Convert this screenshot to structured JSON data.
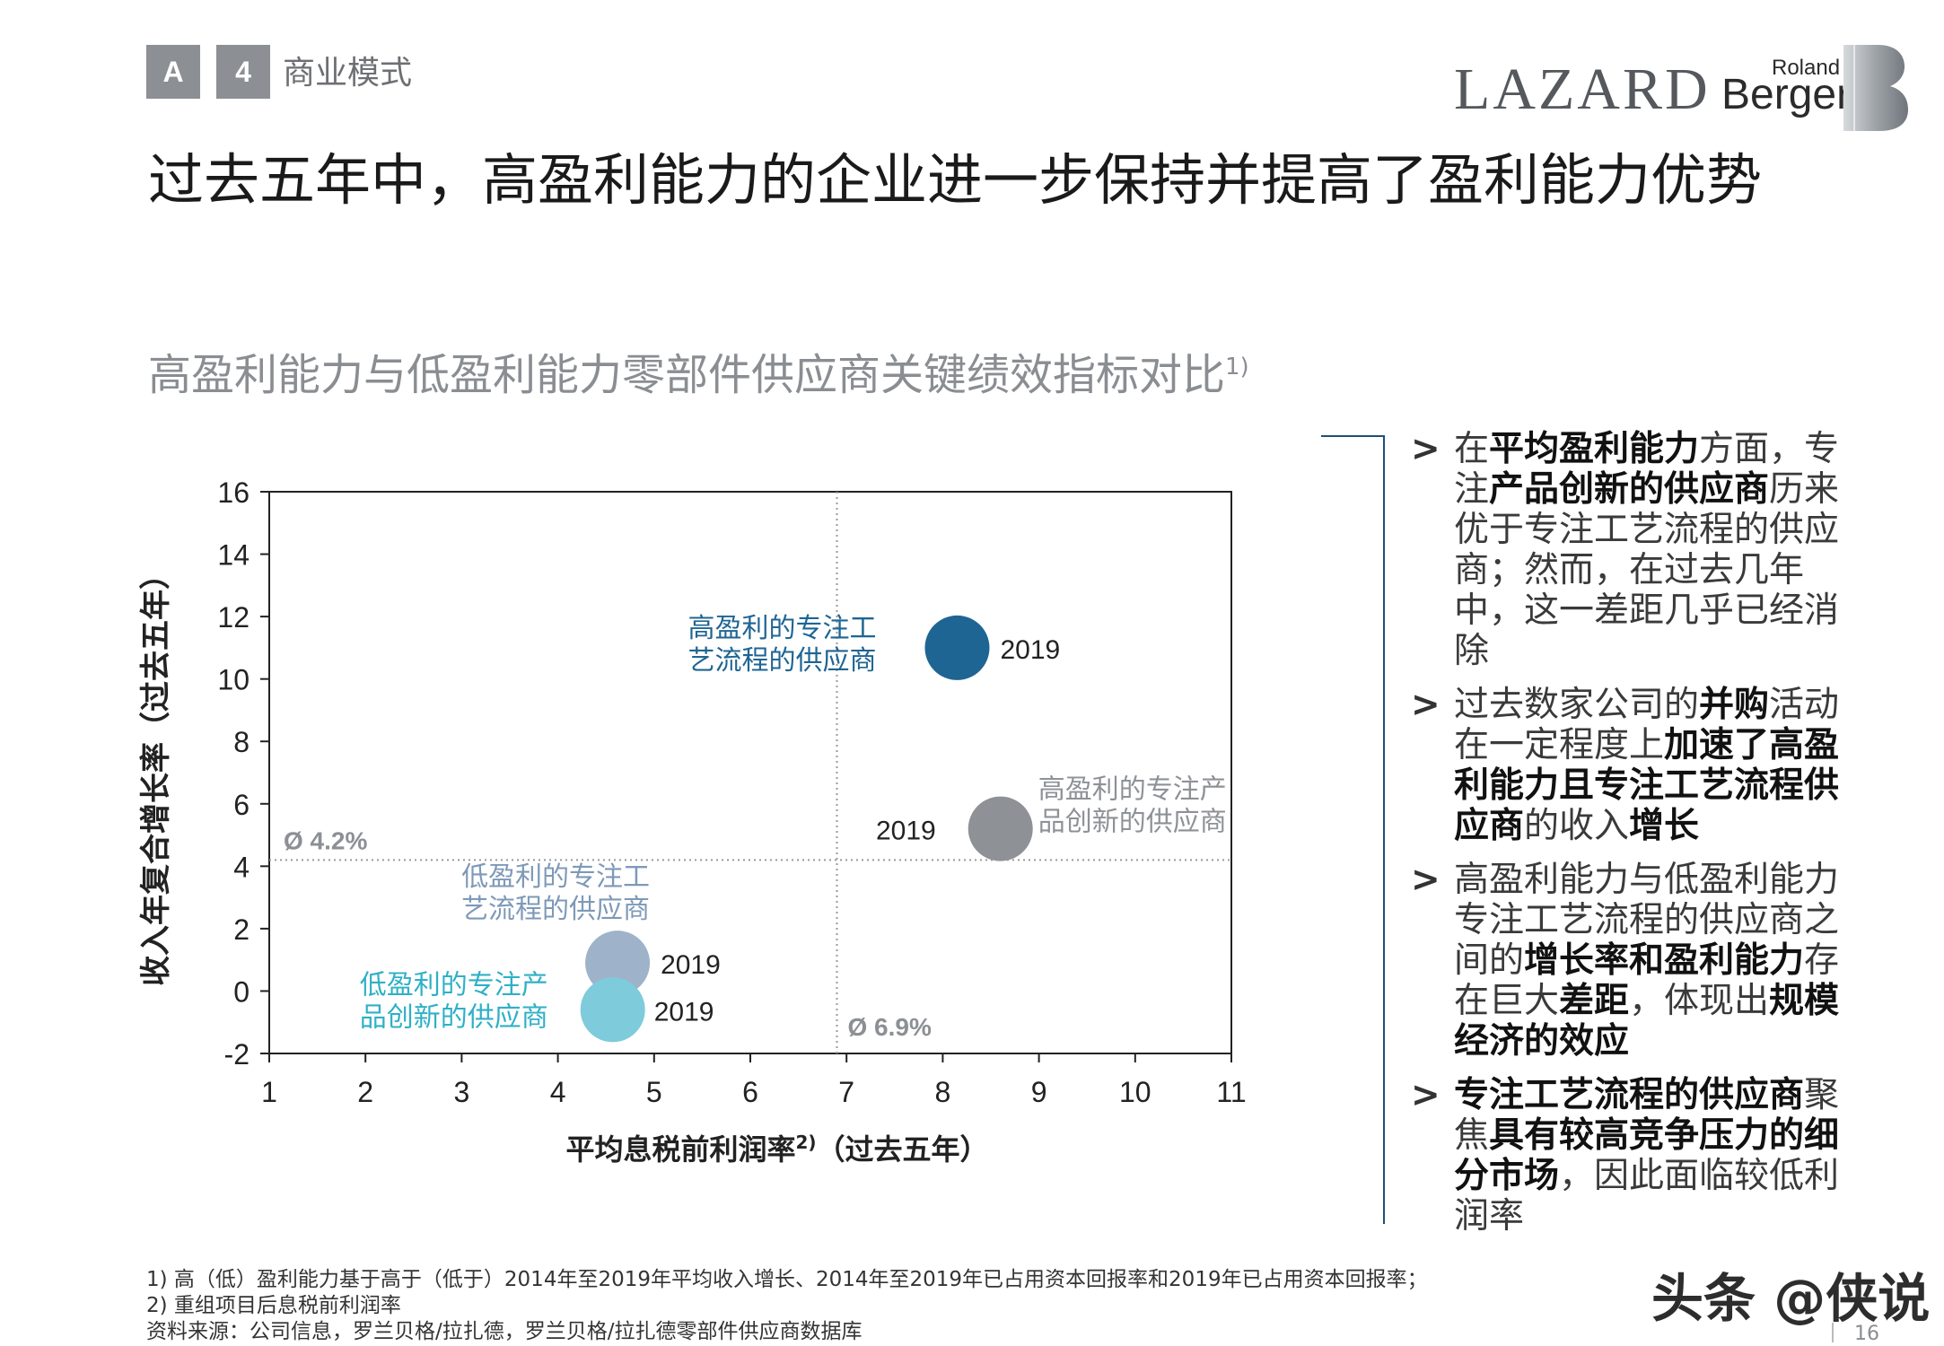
{
  "header": {
    "crumb_letter": "A",
    "crumb_number": "4",
    "crumb_text": "商业模式",
    "logo_lazard": "LAZARD",
    "logo_rb_top": "Roland",
    "logo_rb_main": "Berger"
  },
  "title": "过去五年中，高盈利能力的企业进一步保持并提高了盈利能力优势",
  "subtitle": {
    "text": "高盈利能力与低盈利能力零部件供应商关键绩效指标对比",
    "sup": "1)"
  },
  "chart_data": {
    "type": "scatter",
    "title": "高盈利能力与低盈利能力零部件供应商关键绩效指标对比1)",
    "xlabel": "平均息税前利润率",
    "xlabel_sup": "2)",
    "xlabel_suffix": "（过去五年）",
    "ylabel": "收入年复合增长率（过去五年）",
    "xlim": [
      1,
      11
    ],
    "ylim": [
      -2,
      16
    ],
    "x_ticks": [
      1,
      2,
      3,
      4,
      5,
      6,
      7,
      8,
      9,
      10,
      11
    ],
    "y_ticks": [
      -2,
      0,
      2,
      4,
      6,
      8,
      10,
      12,
      14,
      16
    ],
    "reference_lines": [
      {
        "axis": "x",
        "value": 6.9,
        "label": "Ø 6.9%"
      },
      {
        "axis": "y",
        "value": 4.2,
        "label": "Ø 4.2%"
      }
    ],
    "points": [
      {
        "label_lines": [
          "高盈利的专注工",
          "艺流程的供应商"
        ],
        "x": 8.15,
        "y": 11.0,
        "year": "2019",
        "color": "#1f6593",
        "label_color": "#1f6593"
      },
      {
        "label_lines": [
          "高盈利的专注产",
          "品创新的供应商"
        ],
        "x": 8.6,
        "y": 5.2,
        "year": "2019",
        "color": "#8e9196",
        "label_color": "#8e9196"
      },
      {
        "label_lines": [
          "低盈利的专注工",
          "艺流程的供应商"
        ],
        "x": 4.62,
        "y": 0.9,
        "year": "2019",
        "color": "#9eb3c9",
        "label_color": "#7e99b8"
      },
      {
        "label_lines": [
          "低盈利的专注产",
          "品创新的供应商"
        ],
        "x": 4.57,
        "y": -0.6,
        "year": "2019",
        "color": "#7dcbdb",
        "label_color": "#2fb0c6"
      }
    ]
  },
  "bullets": [
    {
      "parts": [
        {
          "t": "在",
          "b": false
        },
        {
          "t": "平均盈利能力",
          "b": true
        },
        {
          "t": "方面，专注",
          "b": false
        },
        {
          "t": "产品创新的供应商",
          "b": true
        },
        {
          "t": "历来优于专注工艺流程的供应商；然而，在过去几年中，这一差距几乎已经消除",
          "b": false
        }
      ]
    },
    {
      "parts": [
        {
          "t": "过去数家公司的",
          "b": false
        },
        {
          "t": "并购",
          "b": true
        },
        {
          "t": "活动在一定程度上",
          "b": false
        },
        {
          "t": "加速了高盈利能力且专注工艺流程供应商",
          "b": true
        },
        {
          "t": "的收入",
          "b": false
        },
        {
          "t": "增长",
          "b": true
        }
      ]
    },
    {
      "parts": [
        {
          "t": "高盈利能力与低盈利能力专注工艺流程的供应商之间的",
          "b": false
        },
        {
          "t": "增长率和盈利能力",
          "b": true
        },
        {
          "t": "存在巨大",
          "b": false
        },
        {
          "t": "差距",
          "b": true
        },
        {
          "t": "，体现出",
          "b": false
        },
        {
          "t": "规模经济的效应",
          "b": true
        }
      ]
    },
    {
      "parts": [
        {
          "t": "专注工艺流程的供应商",
          "b": true
        },
        {
          "t": "聚焦",
          "b": false
        },
        {
          "t": "具有较高竞争压力的细分市场",
          "b": true
        },
        {
          "t": "，因此面临较低利润率",
          "b": false
        }
      ]
    }
  ],
  "bullet_marker": ">",
  "footnotes": [
    "1) 高（低）盈利能力基于高于（低于）2014年至2019年平均收入增长、2014年至2019年已占用资本回报率和2019年已占用资本回报率；",
    "2) 重组项目后息税前利润率",
    "资料来源：公司信息，罗兰贝格/拉扎德，罗兰贝格/拉扎德零部件供应商数据库"
  ],
  "watermark": "头条 @侠说",
  "page_number": "16"
}
